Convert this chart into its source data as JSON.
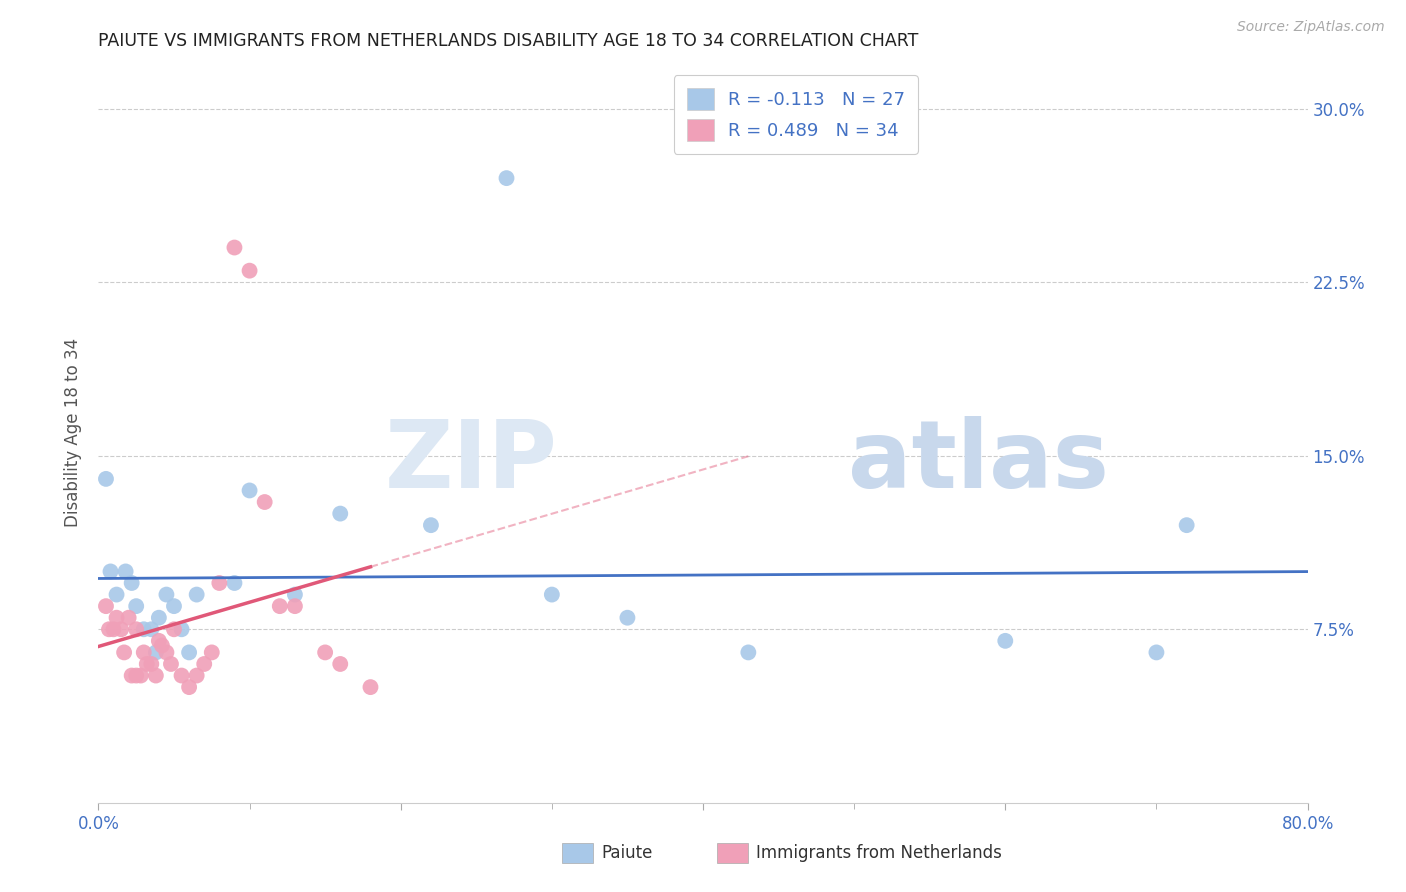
{
  "title": "PAIUTE VS IMMIGRANTS FROM NETHERLANDS DISABILITY AGE 18 TO 34 CORRELATION CHART",
  "source": "Source: ZipAtlas.com",
  "ylabel": "Disability Age 18 to 34",
  "xlim": [
    0.0,
    0.8
  ],
  "ylim": [
    0.0,
    0.32
  ],
  "xtick_vals": [
    0.0,
    0.2,
    0.4,
    0.6,
    0.8
  ],
  "xtick_labels": [
    "0.0%",
    "",
    "",
    "",
    "80.0%"
  ],
  "ytick_vals": [
    0.075,
    0.15,
    0.225,
    0.3
  ],
  "ytick_labels": [
    "7.5%",
    "15.0%",
    "22.5%",
    "30.0%"
  ],
  "legend_label1_r": "R = -0.113",
  "legend_label1_n": "N = 27",
  "legend_label2_r": "R = 0.489",
  "legend_label2_n": "N = 34",
  "legend_label1": "Paiute",
  "legend_label2": "Immigrants from Netherlands",
  "blue_color": "#a8c8e8",
  "pink_color": "#f0a0b8",
  "blue_line_color": "#4472c4",
  "pink_line_color": "#e05878",
  "watermark_zip": "ZIP",
  "watermark_atlas": "atlas",
  "paiute_x": [
    0.005,
    0.008,
    0.012,
    0.018,
    0.022,
    0.025,
    0.03,
    0.035,
    0.038,
    0.04,
    0.045,
    0.05,
    0.055,
    0.06,
    0.065,
    0.09,
    0.1,
    0.13,
    0.16,
    0.22,
    0.27,
    0.3,
    0.35,
    0.43,
    0.6,
    0.7,
    0.72
  ],
  "paiute_y": [
    0.14,
    0.1,
    0.09,
    0.1,
    0.095,
    0.085,
    0.075,
    0.075,
    0.065,
    0.08,
    0.09,
    0.085,
    0.075,
    0.065,
    0.09,
    0.095,
    0.135,
    0.09,
    0.125,
    0.12,
    0.27,
    0.09,
    0.08,
    0.065,
    0.07,
    0.065,
    0.12
  ],
  "netherlands_x": [
    0.005,
    0.007,
    0.01,
    0.012,
    0.015,
    0.017,
    0.02,
    0.022,
    0.025,
    0.025,
    0.028,
    0.03,
    0.032,
    0.035,
    0.038,
    0.04,
    0.042,
    0.045,
    0.048,
    0.05,
    0.055,
    0.06,
    0.065,
    0.07,
    0.075,
    0.08,
    0.09,
    0.1,
    0.11,
    0.12,
    0.13,
    0.15,
    0.16,
    0.18
  ],
  "netherlands_y": [
    0.085,
    0.075,
    0.075,
    0.08,
    0.075,
    0.065,
    0.08,
    0.055,
    0.075,
    0.055,
    0.055,
    0.065,
    0.06,
    0.06,
    0.055,
    0.07,
    0.068,
    0.065,
    0.06,
    0.075,
    0.055,
    0.05,
    0.055,
    0.06,
    0.065,
    0.095,
    0.24,
    0.23,
    0.13,
    0.085,
    0.085,
    0.065,
    0.06,
    0.05
  ]
}
